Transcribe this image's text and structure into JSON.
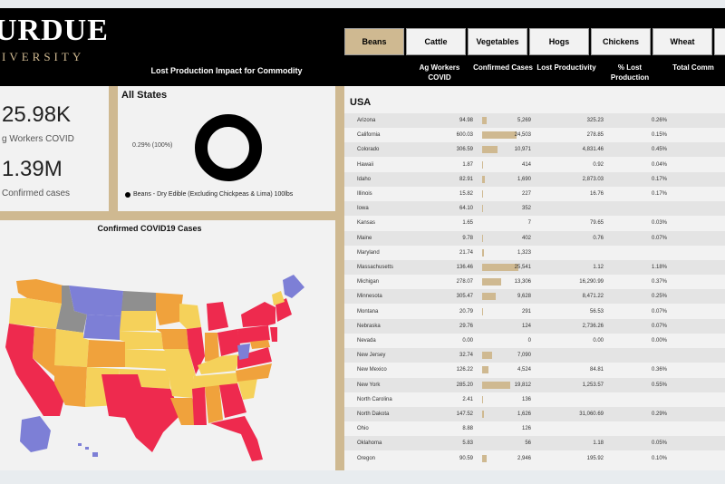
{
  "header": {
    "logo_main": "URDUE",
    "logo_sub": "IVERSITY",
    "title": "Lost Production Impact for Commodity"
  },
  "tabs": [
    {
      "label": "Beans",
      "active": true
    },
    {
      "label": "Cattle",
      "active": false
    },
    {
      "label": "Vegetables",
      "active": false
    },
    {
      "label": "Hogs",
      "active": false
    },
    {
      "label": "Chickens",
      "active": false
    },
    {
      "label": "Wheat",
      "active": false
    },
    {
      "label": "",
      "active": false
    }
  ],
  "kpis": {
    "ag_workers_value": "25.98K",
    "ag_workers_label": "g Workers COVID",
    "cases_value": "1.39M",
    "cases_label": "Confirmed cases"
  },
  "donut": {
    "title": "All States",
    "pct_label": "0.29% (100%)",
    "legend": "Beans - Dry Edible (Excluding Chickpeas & Lima) 100lbs"
  },
  "map": {
    "title": "Confirmed COVID19 Cases"
  },
  "table": {
    "headers": [
      "Ag Workers COVID",
      "Confirmed Cases",
      "Lost Productivity",
      "% Lost Production",
      "Total Comm"
    ],
    "group": "USA",
    "rows": [
      {
        "state": "Arizona",
        "ag": "94.98",
        "cases": "5,269",
        "lost": "325.23",
        "pct": "0.26%",
        "bar": 0.12
      },
      {
        "state": "California",
        "ag": "600.03",
        "cases": "24,503",
        "lost": "278.85",
        "pct": "0.15%",
        "bar": 0.95
      },
      {
        "state": "Colorado",
        "ag": "306.59",
        "cases": "10,971",
        "lost": "4,831.46",
        "pct": "0.45%",
        "bar": 0.43
      },
      {
        "state": "Hawaii",
        "ag": "1.87",
        "cases": "414",
        "lost": "0.92",
        "pct": "0.04%",
        "bar": 0.02
      },
      {
        "state": "Idaho",
        "ag": "82.91",
        "cases": "1,690",
        "lost": "2,873.03",
        "pct": "0.17%",
        "bar": 0.07
      },
      {
        "state": "Illinois",
        "ag": "15.82",
        "cases": "227",
        "lost": "16.76",
        "pct": "0.17%",
        "bar": 0.01
      },
      {
        "state": "Iowa",
        "ag": "64.10",
        "cases": "352",
        "lost": "",
        "pct": "",
        "bar": 0.01
      },
      {
        "state": "Kansas",
        "ag": "1.65",
        "cases": "7",
        "lost": "79.65",
        "pct": "0.03%",
        "bar": 0.0
      },
      {
        "state": "Maine",
        "ag": "9.78",
        "cases": "402",
        "lost": "0.76",
        "pct": "0.07%",
        "bar": 0.02
      },
      {
        "state": "Maryland",
        "ag": "21.74",
        "cases": "1,323",
        "lost": "",
        "pct": "",
        "bar": 0.05
      },
      {
        "state": "Massachusetts",
        "ag": "136.46",
        "cases": "25,541",
        "lost": "1.12",
        "pct": "1.18%",
        "bar": 1.0
      },
      {
        "state": "Michigan",
        "ag": "278.07",
        "cases": "13,306",
        "lost": "16,290.99",
        "pct": "0.37%",
        "bar": 0.52
      },
      {
        "state": "Minnesota",
        "ag": "305.47",
        "cases": "9,628",
        "lost": "8,471.22",
        "pct": "0.25%",
        "bar": 0.38
      },
      {
        "state": "Montana",
        "ag": "20.79",
        "cases": "291",
        "lost": "56.53",
        "pct": "0.07%",
        "bar": 0.01
      },
      {
        "state": "Nebraska",
        "ag": "29.76",
        "cases": "124",
        "lost": "2,736.26",
        "pct": "0.07%",
        "bar": 0.0
      },
      {
        "state": "Nevada",
        "ag": "0.00",
        "cases": "0",
        "lost": "0.00",
        "pct": "0.00%",
        "bar": 0.0
      },
      {
        "state": "New Jersey",
        "ag": "32.74",
        "cases": "7,090",
        "lost": "",
        "pct": "",
        "bar": 0.28
      },
      {
        "state": "New Mexico",
        "ag": "126.22",
        "cases": "4,524",
        "lost": "84.81",
        "pct": "0.36%",
        "bar": 0.18
      },
      {
        "state": "New York",
        "ag": "285.20",
        "cases": "19,812",
        "lost": "1,253.57",
        "pct": "0.55%",
        "bar": 0.78
      },
      {
        "state": "North Carolina",
        "ag": "2.41",
        "cases": "136",
        "lost": "",
        "pct": "",
        "bar": 0.01
      },
      {
        "state": "North Dakota",
        "ag": "147.52",
        "cases": "1,626",
        "lost": "31,060.69",
        "pct": "0.29%",
        "bar": 0.06
      },
      {
        "state": "Ohio",
        "ag": "8.88",
        "cases": "126",
        "lost": "",
        "pct": "",
        "bar": 0.0
      },
      {
        "state": "Oklahoma",
        "ag": "5.83",
        "cases": "56",
        "lost": "1.18",
        "pct": "0.05%",
        "bar": 0.0
      },
      {
        "state": "Oregon",
        "ag": "90.59",
        "cases": "2,946",
        "lost": "195.92",
        "pct": "0.10%",
        "bar": 0.12
      }
    ]
  },
  "colors": {
    "gold": "#cfb991",
    "black": "#000000",
    "card": "#f2f2f2",
    "map_high": "#ee2a4e",
    "map_mid": "#f0a23c",
    "map_low": "#f5d15a",
    "map_vlow": "#7d7fd6",
    "map_zero": "#8f8f8f"
  }
}
